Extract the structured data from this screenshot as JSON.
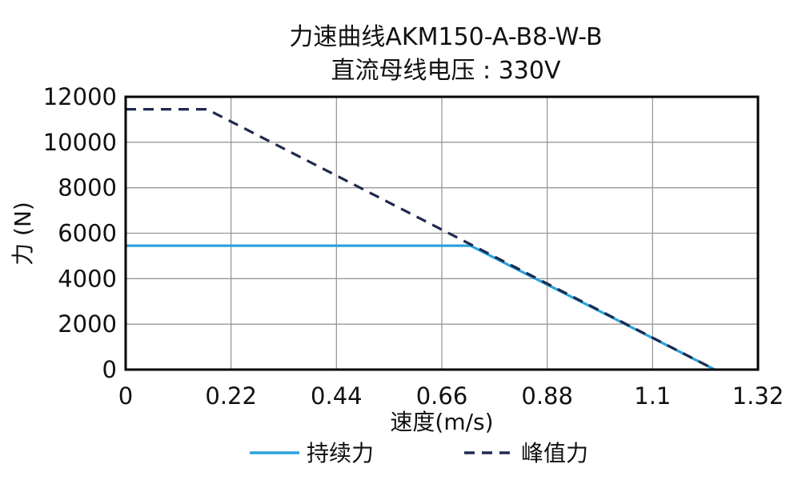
{
  "chart_data": {
    "type": "line",
    "title": "力速曲线AKM150-A-B8-W-B",
    "subtitle": "直流母线电压 : 330V",
    "xlabel": "速度(m/s)",
    "ylabel": "力 (N)",
    "xlim": [
      0,
      1.32
    ],
    "ylim": [
      0,
      12000
    ],
    "x_ticks": [
      "0",
      "0.22",
      "0.44",
      "0.66",
      "0.88",
      "1.1",
      "1.32"
    ],
    "y_ticks": [
      "0",
      "2000",
      "4000",
      "6000",
      "8000",
      "10000",
      "12000"
    ],
    "grid": true,
    "legend_position": "bottom",
    "series": [
      {
        "name": "持续力",
        "style": "solid",
        "color": "#29a3dc",
        "points": [
          [
            0,
            5450
          ],
          [
            0.72,
            5450
          ],
          [
            1.23,
            0
          ]
        ]
      },
      {
        "name": "峰值力",
        "style": "dashed",
        "color": "#1f2a4f",
        "points": [
          [
            0,
            11450
          ],
          [
            0.17,
            11450
          ],
          [
            1.23,
            0
          ]
        ]
      }
    ]
  }
}
